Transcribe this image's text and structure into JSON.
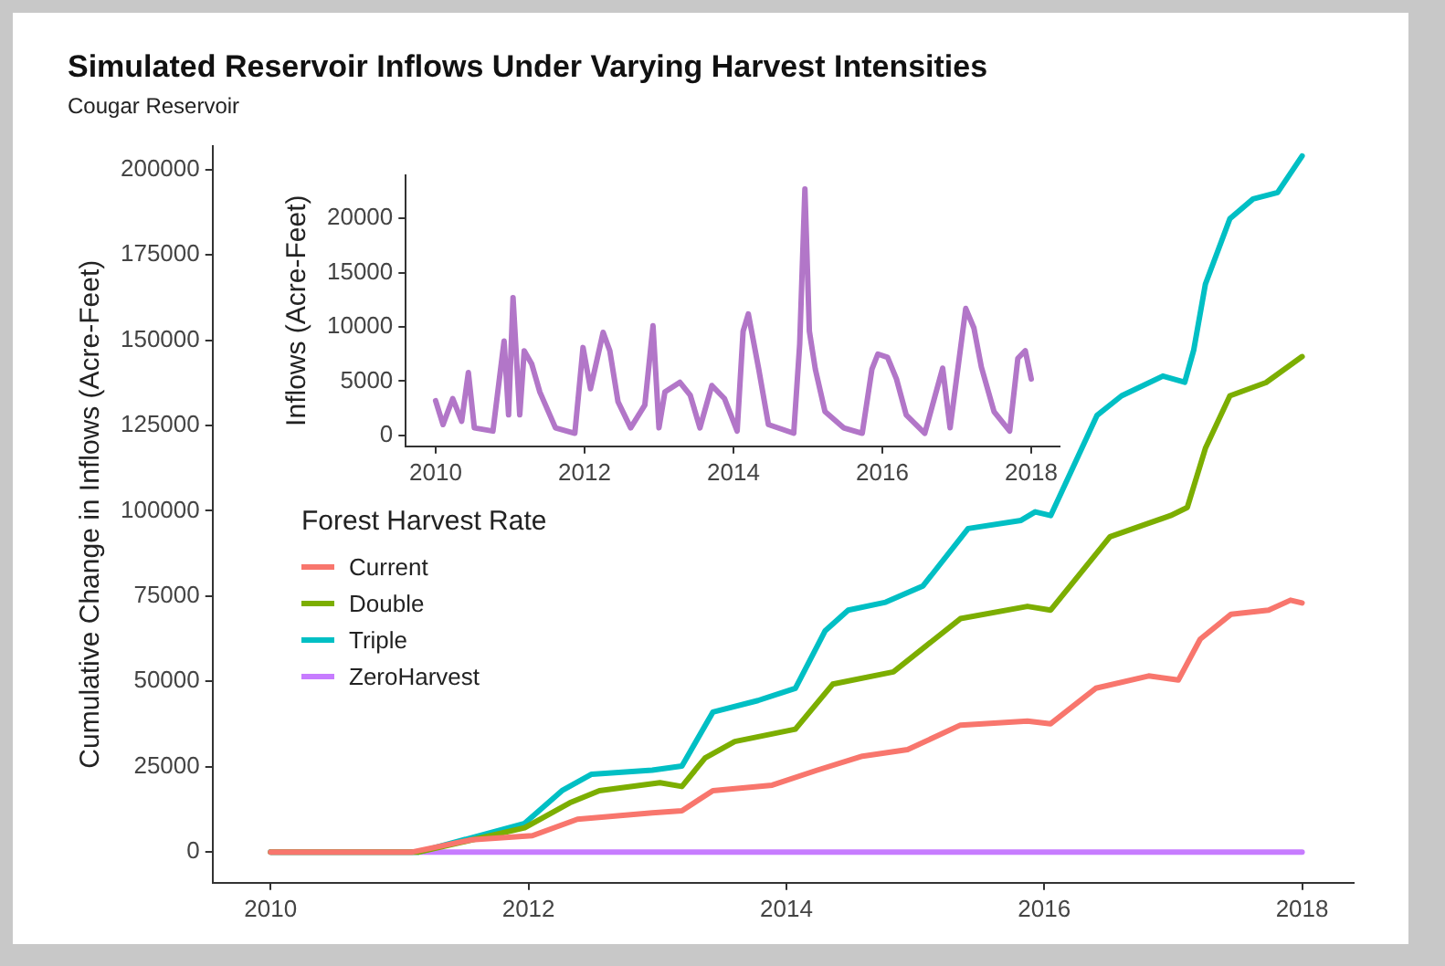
{
  "chart_data": [
    {
      "type": "line",
      "title": "Simulated Reservoir Inflows Under Varying Harvest Intensities",
      "subtitle": "Cougar Reservoir",
      "ylabel": "Cumulative Change in Inflows (Acre-Feet)",
      "legend_title": "Forest Harvest Rate",
      "legend": "left",
      "grid": false,
      "marker": "none",
      "line_style": "solid",
      "xlim": [
        2009.55,
        2018.4
      ],
      "xticks": [
        2010,
        2012,
        2014,
        2016,
        2018
      ],
      "ylim": [
        -9000,
        207000
      ],
      "yticks": [
        0,
        25000,
        50000,
        75000,
        100000,
        125000,
        150000,
        175000,
        200000
      ],
      "series": [
        {
          "name": "Current",
          "color": "#f8766d",
          "x": [
            2010,
            2011.1,
            2011.56,
            2012.03,
            2012.38,
            2012.96,
            2013.19,
            2013.43,
            2013.89,
            2014.24,
            2014.59,
            2014.94,
            2015.35,
            2015.87,
            2016.05,
            2016.4,
            2016.81,
            2017.04,
            2017.21,
            2017.45,
            2017.74,
            2017.91,
            2018
          ],
          "values": [
            0,
            0,
            3600,
            4800,
            9600,
            11500,
            12100,
            18000,
            19600,
            24000,
            28100,
            30000,
            37200,
            38400,
            37600,
            48000,
            51600,
            50400,
            62400,
            69700,
            70900,
            73800,
            73000
          ]
        },
        {
          "name": "Double",
          "color": "#7cae00",
          "x": [
            2010,
            2011.15,
            2011.97,
            2012.32,
            2012.55,
            2013.02,
            2013.19,
            2013.37,
            2013.6,
            2014.07,
            2014.36,
            2014.83,
            2015.35,
            2015.87,
            2016.05,
            2016.51,
            2016.98,
            2017.11,
            2017.25,
            2017.44,
            2017.72,
            2018
          ],
          "values": [
            0,
            0,
            7100,
            14400,
            18000,
            20300,
            19200,
            27600,
            32400,
            36000,
            49200,
            52800,
            68400,
            72000,
            70900,
            92400,
            98600,
            101000,
            118300,
            133700,
            137600,
            145200
          ]
        },
        {
          "name": "Triple",
          "color": "#00bfc4",
          "x": [
            2010,
            2011.15,
            2011.97,
            2012.26,
            2012.49,
            2012.96,
            2013.19,
            2013.43,
            2013.78,
            2014.07,
            2014.3,
            2014.48,
            2014.77,
            2015.06,
            2015.41,
            2015.82,
            2015.93,
            2016.05,
            2016.41,
            2016.6,
            2016.92,
            2017.09,
            2017.16,
            2017.25,
            2017.44,
            2017.62,
            2017.81,
            2018
          ],
          "values": [
            0,
            0,
            8400,
            18000,
            22800,
            24000,
            25200,
            41000,
            44400,
            48000,
            64800,
            70900,
            73200,
            78000,
            94800,
            97200,
            99700,
            98600,
            128000,
            133700,
            139500,
            137700,
            147200,
            166400,
            185600,
            191400,
            193300,
            204000
          ]
        },
        {
          "name": "ZeroHarvest",
          "color": "#c77cff",
          "x": [
            2010,
            2018
          ],
          "values": [
            0,
            0
          ]
        }
      ]
    },
    {
      "type": "line",
      "ylabel": "Inflows (Acre-Feet)",
      "grid": false,
      "marker": "none",
      "line_style": "solid",
      "xlim": [
        2009.6,
        2018.38
      ],
      "xticks": [
        2010,
        2012,
        2014,
        2016,
        2018
      ],
      "ylim": [
        -1000,
        24000
      ],
      "yticks": [
        0,
        5000,
        10000,
        15000,
        20000
      ],
      "series": [
        {
          "color": "#b276c8",
          "x": [
            2010,
            2010.1,
            2010.23,
            2010.35,
            2010.44,
            2010.52,
            2010.77,
            2010.92,
            2010.98,
            2011.04,
            2011.13,
            2011.19,
            2011.29,
            2011.4,
            2011.61,
            2011.87,
            2011.98,
            2012.08,
            2012.25,
            2012.34,
            2012.45,
            2012.62,
            2012.81,
            2012.92,
            2013,
            2013.08,
            2013.28,
            2013.42,
            2013.55,
            2013.71,
            2013.88,
            2014.05,
            2014.13,
            2014.2,
            2014.34,
            2014.47,
            2014.81,
            2014.89,
            2014.96,
            2015.02,
            2015.1,
            2015.23,
            2015.48,
            2015.73,
            2015.86,
            2015.94,
            2016.07,
            2016.19,
            2016.32,
            2016.57,
            2016.81,
            2016.91,
            2017.12,
            2017.23,
            2017.33,
            2017.5,
            2017.71,
            2017.82,
            2017.92,
            2018
          ],
          "values": [
            3200,
            1000,
            3400,
            1300,
            5800,
            700,
            400,
            8700,
            1900,
            12700,
            1900,
            7800,
            6600,
            4000,
            700,
            200,
            8100,
            4300,
            9500,
            7800,
            3100,
            700,
            2800,
            10100,
            700,
            4000,
            4900,
            3700,
            700,
            4600,
            3400,
            400,
            9600,
            11200,
            6100,
            1000,
            200,
            8400,
            22700,
            9600,
            6100,
            2200,
            700,
            200,
            6100,
            7500,
            7200,
            5200,
            1900,
            200,
            6200,
            700,
            11700,
            9900,
            6300,
            2200,
            400,
            7100,
            7800,
            5200
          ]
        }
      ]
    }
  ]
}
